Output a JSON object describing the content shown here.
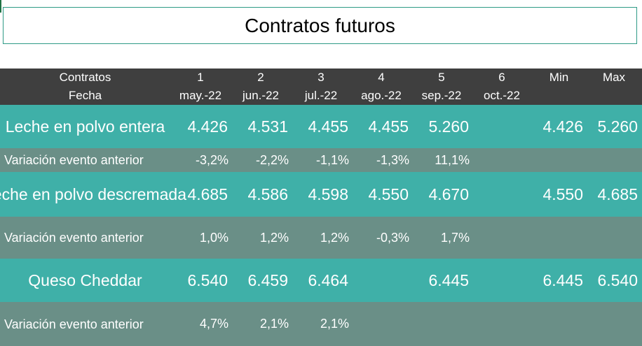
{
  "title": "Contratos futuros",
  "header": {
    "row1_label": "Contratos",
    "row2_label": "Fecha",
    "contracts": [
      "1",
      "2",
      "3",
      "4",
      "5",
      "6"
    ],
    "dates": [
      "may.-22",
      "jun.-22",
      "jul.-22",
      "ago.-22",
      "sep.-22",
      "oct.-22"
    ],
    "min_label": "Min",
    "max_label": "Max"
  },
  "rows": [
    {
      "product": "Leche en polvo entera",
      "values": [
        "4.426",
        "4.531",
        "4.455",
        "4.455",
        "5.260",
        ""
      ],
      "min": "4.426",
      "max": "5.260",
      "variation_label": "Variación evento anterior",
      "variation": [
        "-3,2%",
        "-2,2%",
        "-1,1%",
        "-1,3%",
        "11,1%",
        ""
      ]
    },
    {
      "product": "Leche en polvo descremada",
      "values": [
        "4.685",
        "4.586",
        "4.598",
        "4.550",
        "4.670",
        ""
      ],
      "min": "4.550",
      "max": "4.685",
      "variation_label": "Variación evento anterior",
      "variation": [
        "1,0%",
        "1,2%",
        "1,2%",
        "-0,3%",
        "1,7%",
        ""
      ]
    },
    {
      "product": "Queso Cheddar",
      "values": [
        "6.540",
        "6.459",
        "6.464",
        "",
        "6.445",
        ""
      ],
      "min": "6.445",
      "max": "6.540",
      "variation_label": "Variación evento anterior",
      "variation": [
        "4,7%",
        "2,1%",
        "2,1%",
        "",
        "",
        ""
      ]
    }
  ],
  "colors": {
    "header_bg": "#3f3f3f",
    "product_row_bg": "#3fb0a8",
    "variation_row_bg": "#6a8f87",
    "title_border": "#2e9a86"
  }
}
